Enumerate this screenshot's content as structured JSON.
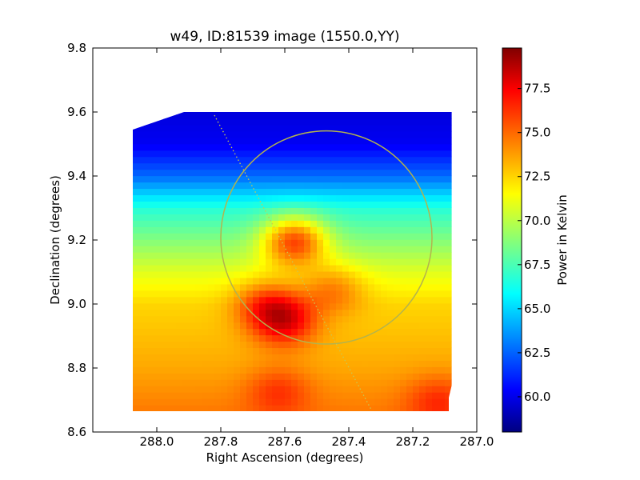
{
  "chart_data": {
    "type": "heatmap",
    "title": "w49, ID:81539 image (1550.0,YY)",
    "xlabel": "Right Ascension (degrees)",
    "ylabel": "Declination (degrees)",
    "colorbar_label": "Power in Kelvin",
    "xlim": [
      288.2,
      287.0
    ],
    "ylim": [
      8.6,
      9.8
    ],
    "x_ticks": [
      "288.0",
      "287.8",
      "287.6",
      "287.4",
      "287.2",
      "287.0"
    ],
    "x_tick_values": [
      288.0,
      287.8,
      287.6,
      287.4,
      287.2,
      287.0
    ],
    "y_ticks": [
      "8.6",
      "8.8",
      "9.0",
      "9.2",
      "9.4",
      "9.6",
      "9.8"
    ],
    "y_tick_values": [
      8.6,
      8.8,
      9.0,
      9.2,
      9.4,
      9.6,
      9.8
    ],
    "colorbar_range": [
      58.0,
      79.8
    ],
    "colorbar_ticks": [
      "60.0",
      "62.5",
      "65.0",
      "67.5",
      "70.0",
      "72.5",
      "75.0",
      "77.5"
    ],
    "colorbar_tick_values": [
      60.0,
      62.5,
      65.0,
      67.5,
      70.0,
      72.5,
      75.0,
      77.5
    ],
    "colormap": "jet",
    "grid": false,
    "map_extent": {
      "ra": [
        288.08,
        287.08
      ],
      "dec": [
        8.665,
        9.6
      ]
    },
    "base_profile": [
      {
        "dec": 9.6,
        "value": 60.0
      },
      {
        "dec": 9.5,
        "value": 60.5
      },
      {
        "dec": 9.4,
        "value": 63.0
      },
      {
        "dec": 9.3,
        "value": 67.0
      },
      {
        "dec": 9.2,
        "value": 69.0
      },
      {
        "dec": 9.1,
        "value": 71.0
      },
      {
        "dec": 9.0,
        "value": 72.5
      },
      {
        "dec": 8.9,
        "value": 73.0
      },
      {
        "dec": 8.8,
        "value": 73.5
      },
      {
        "dec": 8.665,
        "value": 74.5
      }
    ],
    "sources": [
      {
        "ra": 287.57,
        "dec": 9.2,
        "amp": 6.5
      },
      {
        "ra": 287.6,
        "dec": 8.95,
        "amp": 4.5
      },
      {
        "ra": 287.66,
        "dec": 9.0,
        "amp": 3.0
      },
      {
        "ra": 287.45,
        "dec": 9.05,
        "amp": 2.5
      },
      {
        "ra": 287.12,
        "dec": 8.7,
        "amp": 2.0
      },
      {
        "ra": 287.62,
        "dec": 8.73,
        "amp": 2.0
      }
    ],
    "overlays": {
      "circle": {
        "center_ra": 287.47,
        "center_dec": 9.208,
        "radius_ra": 0.33,
        "radius_dec": 0.333,
        "color": "#b3b34d"
      },
      "dotted_line": {
        "from": {
          "ra": 287.82,
          "dec": 9.59
        },
        "to": {
          "ra": 287.33,
          "dec": 8.67
        },
        "color": "#c8c850"
      }
    }
  }
}
